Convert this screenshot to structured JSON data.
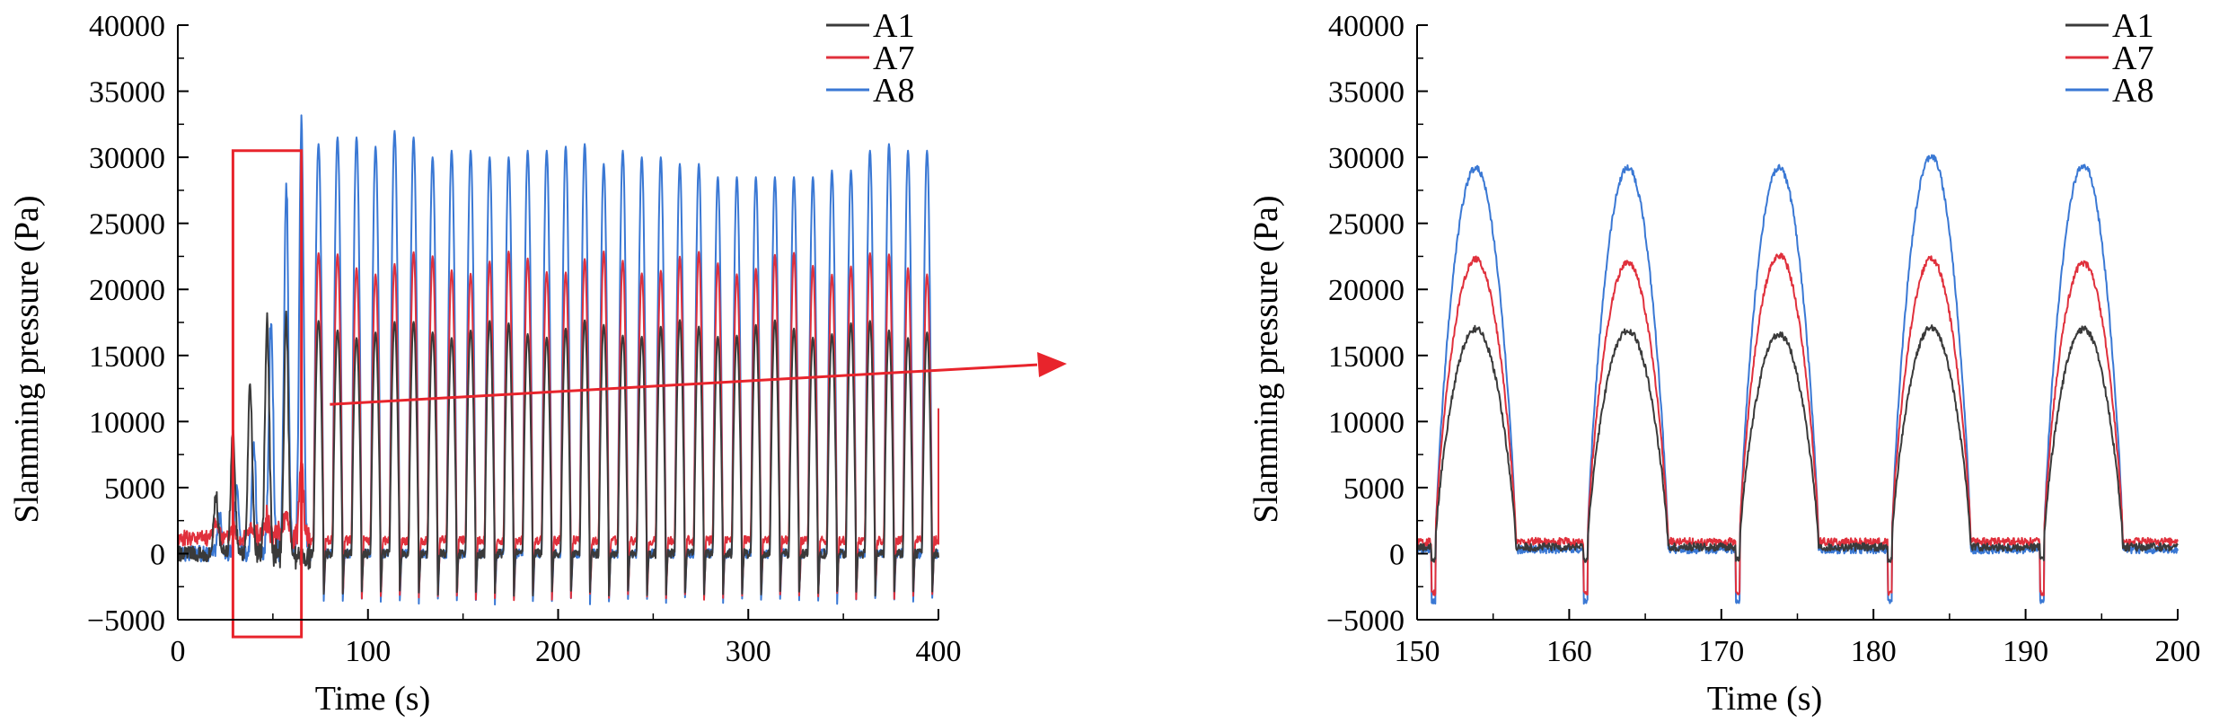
{
  "colors": {
    "A1": "#3a3a3a",
    "A7": "#e0303c",
    "A8": "#3a78d4",
    "callout": "#e8242c"
  },
  "chart_data": [
    {
      "type": "line",
      "title": "",
      "xlabel": "Time (s)",
      "ylabel": "Slamming pressure (Pa)",
      "xlim": [
        0,
        400
      ],
      "ylim": [
        -5000,
        40000
      ],
      "xticks": [
        "0",
        "100",
        "200",
        "300",
        "400"
      ],
      "yticks": [
        "−5000",
        "0",
        "5000",
        "10000",
        "15000",
        "20000",
        "25000",
        "30000",
        "35000",
        "40000"
      ],
      "legend": {
        "placement": "top-right",
        "entries": [
          "A1",
          "A7",
          "A8"
        ]
      },
      "grid": false,
      "annotations": [
        "red box around initial ramp-up (about 30–65 s)",
        "red arrow pointing to zoomed view on the right"
      ],
      "ramp_up_peaks": {
        "A1": [
          [
            20,
            4500
          ],
          [
            29,
            9000
          ],
          [
            38,
            12600
          ],
          [
            47,
            17500
          ],
          [
            57,
            18000
          ]
        ],
        "A7": [
          [
            20,
            2500
          ],
          [
            29,
            2200
          ],
          [
            38,
            2000
          ],
          [
            47,
            2600
          ],
          [
            57,
            3000
          ],
          [
            65,
            6500
          ]
        ],
        "A8": [
          [
            22,
            2800
          ],
          [
            31,
            5000
          ],
          [
            40,
            8000
          ],
          [
            49,
            17500
          ],
          [
            57,
            28500
          ],
          [
            65,
            33000
          ]
        ]
      },
      "steady_state": {
        "period_s": 10,
        "first_peak_s": 74,
        "last_peak_s": 394,
        "A1": {
          "peak": 17000,
          "baseline": 0,
          "trough": -3500
        },
        "A7": {
          "peak": 22000,
          "baseline": 1000,
          "trough": -3800
        },
        "A8": {
          "peak": 30000,
          "baseline": 0,
          "trough": -4200
        }
      },
      "A8_peaks": [
        33000,
        31000,
        31500,
        31500,
        30800,
        32000,
        31500,
        30000,
        30500,
        30500,
        30000,
        30000,
        30500,
        30500,
        30800,
        31000,
        29500,
        30500,
        30000,
        30000,
        29500,
        29500,
        28500,
        28500,
        28500,
        28500,
        28500,
        28500,
        29000,
        29000,
        30500,
        31000,
        30500,
        30500,
        31500,
        31000
      ],
      "end_value": {
        "series": "A7",
        "x": 400,
        "y": 11000
      }
    },
    {
      "type": "line",
      "title": "",
      "xlabel": "Time (s)",
      "ylabel": "Slamming pressure (Pa)",
      "xlim": [
        150,
        200
      ],
      "ylim": [
        -5000,
        40000
      ],
      "xticks": [
        "150",
        "160",
        "170",
        "180",
        "190",
        "200"
      ],
      "yticks": [
        "−5000",
        "0",
        "5000",
        "10000",
        "15000",
        "20000",
        "25000",
        "30000",
        "35000",
        "40000"
      ],
      "legend": {
        "placement": "top-right",
        "entries": [
          "A1",
          "A7",
          "A8"
        ]
      },
      "grid": false,
      "peaks": [
        {
          "t_start": 151.2,
          "t_peak": 154.0,
          "t_end": 156.5,
          "A1": 17000,
          "A7": 22300,
          "A8": 29200
        },
        {
          "t_start": 161.2,
          "t_peak": 164.0,
          "t_end": 166.5,
          "A1": 16900,
          "A7": 22000,
          "A8": 29200
        },
        {
          "t_start": 171.2,
          "t_peak": 173.8,
          "t_end": 176.4,
          "A1": 16600,
          "A7": 22600,
          "A8": 29200
        },
        {
          "t_start": 181.2,
          "t_peak": 183.9,
          "t_end": 186.4,
          "A1": 17100,
          "A7": 22300,
          "A8": 30100
        },
        {
          "t_start": 191.2,
          "t_peak": 193.9,
          "t_end": 196.4,
          "A1": 17000,
          "A7": 22000,
          "A8": 29400
        }
      ],
      "baselines": {
        "A1": 500,
        "A7": 900,
        "A8": 300
      },
      "troughs": {
        "A1": -500,
        "A7": -3300,
        "A8": -4000
      }
    }
  ]
}
